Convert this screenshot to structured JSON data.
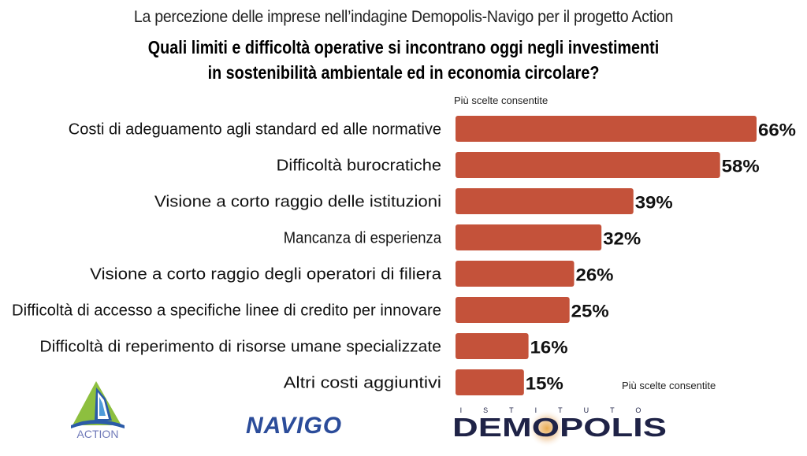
{
  "header": {
    "subtitle": "La percezione delle imprese nell’indagine Demopolis-Navigo per il progetto Action",
    "title_line1": "Quali limiti e difficoltà operative si incontrano oggi negli investimenti",
    "title_line2": "in sostenibilità ambientale ed in economia circolare?"
  },
  "notes": {
    "top": "Più scelte consentite",
    "bottom": "Più scelte consentite"
  },
  "colors": {
    "bar": "#C4523A"
  },
  "logos": {
    "action": "ACTION",
    "navigo": "NAVIGO",
    "demopolis_top": "ISTITUTO",
    "demopolis_main": "DEMOPOLIS"
  },
  "chart_data": {
    "type": "bar",
    "orientation": "horizontal",
    "title": "Quali limiti e difficoltà operative si incontrano oggi negli investimenti in sostenibilità ambientale ed in economia circolare?",
    "xlabel": "",
    "ylabel": "",
    "xlim": [
      0,
      66
    ],
    "unit": "%",
    "grid": false,
    "categories": [
      "Costi di adeguamento agli standard ed alle normative",
      "Difficoltà burocratiche",
      "Visione a corto raggio delle istituzioni",
      "Mancanza di esperienza",
      "Visione a corto raggio degli operatori di filiera",
      "Difficoltà di accesso a specifiche linee di credito per innovare",
      "Difficoltà di reperimento di risorse umane specializzate",
      "Altri costi aggiuntivi"
    ],
    "values": [
      66,
      58,
      39,
      32,
      26,
      25,
      16,
      15
    ],
    "value_labels": [
      "66%",
      "58%",
      "39%",
      "32%",
      "26%",
      "25%",
      "16%",
      "15%"
    ]
  }
}
